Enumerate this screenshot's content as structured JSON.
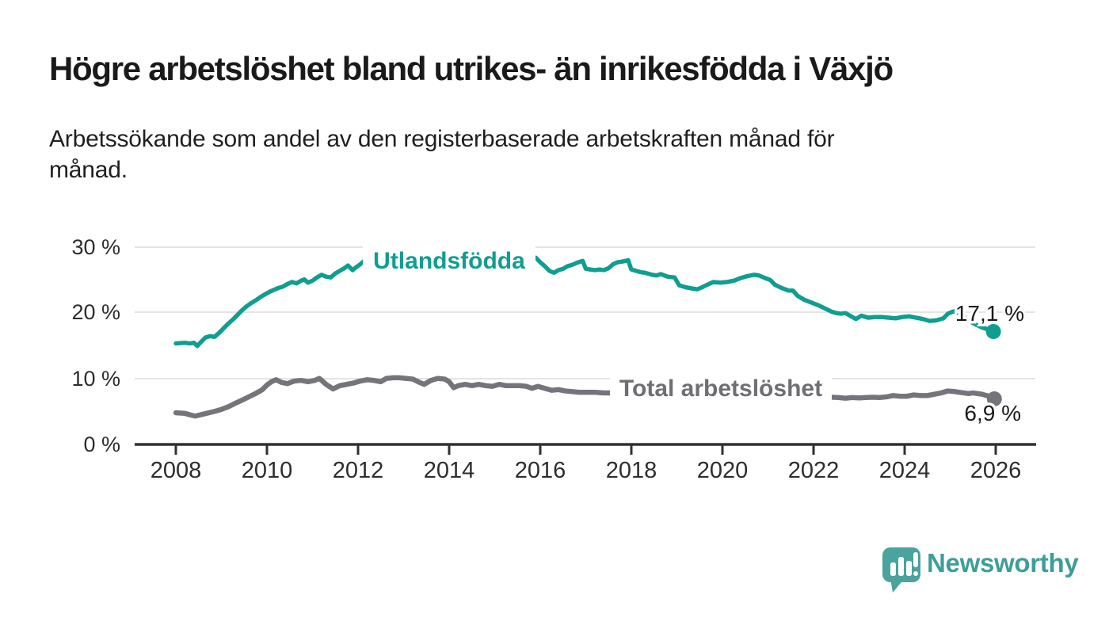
{
  "header": {
    "title": "Högre arbetslöshet bland utrikes- än inrikesfödda i Växjö",
    "subtitle": "Arbetssökande som andel av den registerbaserade arbetskraften månad för\nmånad."
  },
  "chart_data": {
    "type": "line",
    "title": "Högre arbetslöshet bland utrikes- än inrikesfödda i Växjö",
    "subtitle": "Arbetssökande som andel av den registerbaserade arbetskraften månad för månad.",
    "xlabel": "",
    "ylabel": "",
    "x_ticks": [
      "2008",
      "2010",
      "2012",
      "2014",
      "2016",
      "2018",
      "2020",
      "2022",
      "2024",
      "2026"
    ],
    "y_ticks": [
      "30 %",
      "20 %",
      "10 %",
      "0 %"
    ],
    "y_tick_values": [
      30,
      20,
      10,
      0
    ],
    "xlim": [
      2007.1,
      2026.9
    ],
    "ylim": [
      0,
      32
    ],
    "grid": "horizontal",
    "legend_position": "inline-labels",
    "colors": {
      "foreign_born_line": "#0f9e90",
      "total_line": "#74747a",
      "total_label": "#6e6e73",
      "gridline": "#dcdcdc",
      "axis": "#303030"
    },
    "series": [
      {
        "name": "Utlandsfödda",
        "color": "#0f9e90",
        "end_label": "17,1 %",
        "end_value": 17.1,
        "points": [
          [
            2008.0,
            15.3
          ],
          [
            2008.1,
            15.35
          ],
          [
            2008.2,
            15.4
          ],
          [
            2008.3,
            15.3
          ],
          [
            2008.4,
            15.4
          ],
          [
            2008.47,
            14.9
          ],
          [
            2008.55,
            15.5
          ],
          [
            2008.65,
            16.2
          ],
          [
            2008.75,
            16.4
          ],
          [
            2008.85,
            16.3
          ],
          [
            2008.95,
            16.9
          ],
          [
            2009.05,
            17.6
          ],
          [
            2009.15,
            18.3
          ],
          [
            2009.25,
            18.9
          ],
          [
            2009.35,
            19.6
          ],
          [
            2009.45,
            20.3
          ],
          [
            2009.55,
            20.9
          ],
          [
            2009.65,
            21.4
          ],
          [
            2009.75,
            21.8
          ],
          [
            2009.85,
            22.3
          ],
          [
            2009.95,
            22.7
          ],
          [
            2010.05,
            23.1
          ],
          [
            2010.15,
            23.4
          ],
          [
            2010.25,
            23.7
          ],
          [
            2010.35,
            23.9
          ],
          [
            2010.45,
            24.3
          ],
          [
            2010.55,
            24.6
          ],
          [
            2010.65,
            24.4
          ],
          [
            2010.75,
            24.8
          ],
          [
            2010.82,
            25.0
          ],
          [
            2010.9,
            24.5
          ],
          [
            2011.0,
            24.8
          ],
          [
            2011.1,
            25.3
          ],
          [
            2011.2,
            25.7
          ],
          [
            2011.3,
            25.4
          ],
          [
            2011.4,
            25.3
          ],
          [
            2011.5,
            25.9
          ],
          [
            2011.6,
            26.3
          ],
          [
            2011.7,
            26.7
          ],
          [
            2011.78,
            27.1
          ],
          [
            2011.88,
            26.4
          ],
          [
            2011.95,
            26.8
          ],
          [
            2012.05,
            27.3
          ],
          [
            2012.15,
            27.9
          ],
          [
            2012.25,
            27.6
          ],
          [
            2012.38,
            27.9
          ],
          [
            2012.5,
            28.1
          ],
          [
            2012.6,
            27.9
          ],
          [
            2012.7,
            28.0
          ],
          [
            2012.8,
            28.2
          ],
          [
            2012.9,
            27.9
          ],
          [
            2013.0,
            28.1
          ],
          [
            2013.2,
            28.2
          ],
          [
            2013.4,
            28.0
          ],
          [
            2013.6,
            28.3
          ],
          [
            2013.8,
            28.1
          ],
          [
            2014.0,
            28.4
          ],
          [
            2014.2,
            28.2
          ],
          [
            2014.4,
            28.5
          ],
          [
            2014.6,
            28.2
          ],
          [
            2014.8,
            28.1
          ],
          [
            2015.0,
            28.3
          ],
          [
            2015.2,
            28.0
          ],
          [
            2015.4,
            28.2
          ],
          [
            2015.6,
            28.0
          ],
          [
            2015.8,
            28.1
          ],
          [
            2015.9,
            28.3
          ],
          [
            2016.0,
            27.6
          ],
          [
            2016.1,
            27.0
          ],
          [
            2016.2,
            26.3
          ],
          [
            2016.3,
            26.0
          ],
          [
            2016.4,
            26.4
          ],
          [
            2016.5,
            26.6
          ],
          [
            2016.6,
            27.0
          ],
          [
            2016.7,
            27.2
          ],
          [
            2016.8,
            27.5
          ],
          [
            2016.93,
            27.8
          ],
          [
            2017.0,
            26.6
          ],
          [
            2017.1,
            26.5
          ],
          [
            2017.2,
            26.4
          ],
          [
            2017.3,
            26.5
          ],
          [
            2017.4,
            26.4
          ],
          [
            2017.5,
            26.7
          ],
          [
            2017.6,
            27.3
          ],
          [
            2017.7,
            27.6
          ],
          [
            2017.8,
            27.7
          ],
          [
            2017.93,
            27.9
          ],
          [
            2018.0,
            26.5
          ],
          [
            2018.1,
            26.3
          ],
          [
            2018.2,
            26.1
          ],
          [
            2018.3,
            26.0
          ],
          [
            2018.45,
            25.7
          ],
          [
            2018.55,
            25.6
          ],
          [
            2018.65,
            25.8
          ],
          [
            2018.8,
            25.4
          ],
          [
            2018.95,
            25.3
          ],
          [
            2019.05,
            24.1
          ],
          [
            2019.2,
            23.8
          ],
          [
            2019.35,
            23.6
          ],
          [
            2019.45,
            23.5
          ],
          [
            2019.55,
            23.8
          ],
          [
            2019.7,
            24.3
          ],
          [
            2019.8,
            24.6
          ],
          [
            2019.95,
            24.5
          ],
          [
            2020.1,
            24.6
          ],
          [
            2020.25,
            24.8
          ],
          [
            2020.4,
            25.2
          ],
          [
            2020.55,
            25.5
          ],
          [
            2020.7,
            25.7
          ],
          [
            2020.8,
            25.6
          ],
          [
            2020.9,
            25.3
          ],
          [
            2021.05,
            24.9
          ],
          [
            2021.15,
            24.2
          ],
          [
            2021.3,
            23.7
          ],
          [
            2021.45,
            23.3
          ],
          [
            2021.55,
            23.3
          ],
          [
            2021.65,
            22.5
          ],
          [
            2021.8,
            21.9
          ],
          [
            2021.95,
            21.5
          ],
          [
            2022.1,
            21.1
          ],
          [
            2022.25,
            20.6
          ],
          [
            2022.4,
            20.1
          ],
          [
            2022.5,
            19.9
          ],
          [
            2022.6,
            19.8
          ],
          [
            2022.7,
            19.9
          ],
          [
            2022.8,
            19.5
          ],
          [
            2022.93,
            19.0
          ],
          [
            2023.05,
            19.5
          ],
          [
            2023.2,
            19.2
          ],
          [
            2023.35,
            19.3
          ],
          [
            2023.5,
            19.3
          ],
          [
            2023.65,
            19.2
          ],
          [
            2023.8,
            19.1
          ],
          [
            2023.95,
            19.3
          ],
          [
            2024.1,
            19.4
          ],
          [
            2024.25,
            19.2
          ],
          [
            2024.4,
            19.0
          ],
          [
            2024.55,
            18.7
          ],
          [
            2024.7,
            18.8
          ],
          [
            2024.85,
            19.1
          ],
          [
            2024.95,
            19.8
          ],
          [
            2025.05,
            20.1
          ],
          [
            2025.12,
            20.2
          ],
          [
            2025.25,
            19.6
          ],
          [
            2025.4,
            18.8
          ],
          [
            2025.55,
            18.2
          ],
          [
            2025.7,
            17.7
          ],
          [
            2025.85,
            17.4
          ],
          [
            2025.95,
            17.1
          ]
        ]
      },
      {
        "name": "Total arbetslöshet",
        "color": "#74747a",
        "end_label": "6,9 %",
        "end_value": 6.9,
        "points": [
          [
            2008.0,
            4.8
          ],
          [
            2008.1,
            4.75
          ],
          [
            2008.2,
            4.7
          ],
          [
            2008.3,
            4.5
          ],
          [
            2008.42,
            4.3
          ],
          [
            2008.55,
            4.5
          ],
          [
            2008.7,
            4.75
          ],
          [
            2008.85,
            5.0
          ],
          [
            2009.0,
            5.3
          ],
          [
            2009.15,
            5.7
          ],
          [
            2009.3,
            6.2
          ],
          [
            2009.45,
            6.7
          ],
          [
            2009.6,
            7.2
          ],
          [
            2009.75,
            7.7
          ],
          [
            2009.9,
            8.3
          ],
          [
            2010.0,
            9.0
          ],
          [
            2010.1,
            9.5
          ],
          [
            2010.2,
            9.8
          ],
          [
            2010.32,
            9.4
          ],
          [
            2010.45,
            9.2
          ],
          [
            2010.6,
            9.6
          ],
          [
            2010.75,
            9.7
          ],
          [
            2010.9,
            9.5
          ],
          [
            2011.05,
            9.7
          ],
          [
            2011.15,
            10.0
          ],
          [
            2011.3,
            9.1
          ],
          [
            2011.45,
            8.4
          ],
          [
            2011.6,
            8.9
          ],
          [
            2011.75,
            9.1
          ],
          [
            2011.9,
            9.3
          ],
          [
            2012.05,
            9.6
          ],
          [
            2012.2,
            9.8
          ],
          [
            2012.35,
            9.7
          ],
          [
            2012.5,
            9.5
          ],
          [
            2012.62,
            10.0
          ],
          [
            2012.78,
            10.1
          ],
          [
            2012.9,
            10.1
          ],
          [
            2013.05,
            10.0
          ],
          [
            2013.2,
            9.9
          ],
          [
            2013.35,
            9.4
          ],
          [
            2013.45,
            9.1
          ],
          [
            2013.6,
            9.7
          ],
          [
            2013.75,
            10.0
          ],
          [
            2013.9,
            9.9
          ],
          [
            2014.0,
            9.5
          ],
          [
            2014.1,
            8.6
          ],
          [
            2014.2,
            8.9
          ],
          [
            2014.35,
            9.1
          ],
          [
            2014.5,
            8.9
          ],
          [
            2014.65,
            9.1
          ],
          [
            2014.8,
            8.9
          ],
          [
            2014.95,
            8.8
          ],
          [
            2015.1,
            9.1
          ],
          [
            2015.25,
            8.9
          ],
          [
            2015.4,
            8.9
          ],
          [
            2015.55,
            8.9
          ],
          [
            2015.7,
            8.8
          ],
          [
            2015.82,
            8.5
          ],
          [
            2015.95,
            8.8
          ],
          [
            2016.1,
            8.5
          ],
          [
            2016.25,
            8.2
          ],
          [
            2016.4,
            8.3
          ],
          [
            2016.55,
            8.1
          ],
          [
            2016.7,
            8.0
          ],
          [
            2016.85,
            7.9
          ],
          [
            2017.0,
            7.9
          ],
          [
            2017.2,
            7.9
          ],
          [
            2017.4,
            7.8
          ],
          [
            2017.6,
            7.8
          ],
          [
            2017.8,
            7.8
          ],
          [
            2018.0,
            7.7
          ],
          [
            2018.3,
            7.6
          ],
          [
            2018.6,
            7.5
          ],
          [
            2018.9,
            7.4
          ],
          [
            2019.2,
            7.3
          ],
          [
            2019.5,
            7.2
          ],
          [
            2019.8,
            7.3
          ],
          [
            2020.0,
            7.4
          ],
          [
            2020.2,
            8.0
          ],
          [
            2020.4,
            8.5
          ],
          [
            2020.6,
            8.6
          ],
          [
            2020.8,
            8.5
          ],
          [
            2021.0,
            8.3
          ],
          [
            2021.2,
            8.0
          ],
          [
            2021.4,
            7.8
          ],
          [
            2021.6,
            7.6
          ],
          [
            2021.8,
            7.4
          ],
          [
            2022.0,
            7.3
          ],
          [
            2022.2,
            7.2
          ],
          [
            2022.4,
            7.15
          ],
          [
            2022.55,
            7.1
          ],
          [
            2022.7,
            7.0
          ],
          [
            2022.85,
            7.1
          ],
          [
            2023.0,
            7.05
          ],
          [
            2023.15,
            7.1
          ],
          [
            2023.3,
            7.15
          ],
          [
            2023.45,
            7.1
          ],
          [
            2023.6,
            7.2
          ],
          [
            2023.75,
            7.4
          ],
          [
            2023.9,
            7.3
          ],
          [
            2024.05,
            7.3
          ],
          [
            2024.2,
            7.5
          ],
          [
            2024.35,
            7.4
          ],
          [
            2024.5,
            7.4
          ],
          [
            2024.65,
            7.6
          ],
          [
            2024.8,
            7.8
          ],
          [
            2024.95,
            8.1
          ],
          [
            2025.1,
            8.0
          ],
          [
            2025.2,
            7.9
          ],
          [
            2025.3,
            7.8
          ],
          [
            2025.4,
            7.7
          ],
          [
            2025.5,
            7.8
          ],
          [
            2025.6,
            7.7
          ],
          [
            2025.7,
            7.6
          ],
          [
            2025.8,
            7.4
          ],
          [
            2025.9,
            7.2
          ],
          [
            2025.97,
            6.9
          ]
        ]
      }
    ]
  },
  "branding": {
    "name": "Newsworthy",
    "logo_icon": "newsworthy-speech-bubble-chart-icon",
    "text_color": "#3d9e98",
    "logo_color": "#4aa39c"
  }
}
